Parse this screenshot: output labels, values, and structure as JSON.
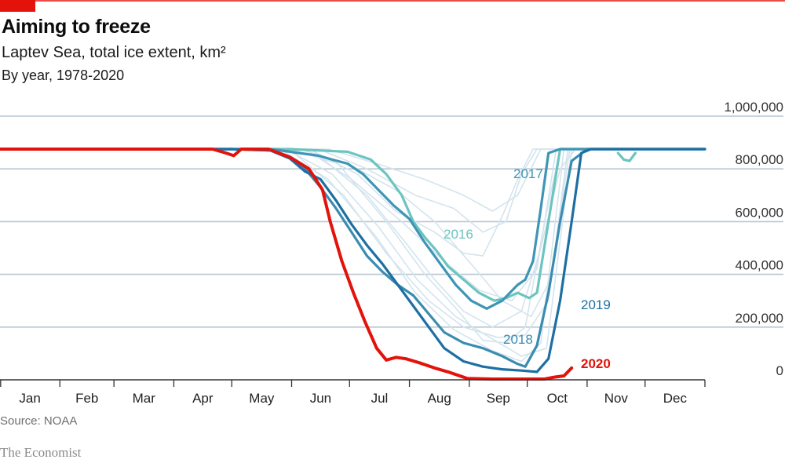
{
  "header": {
    "title": "Aiming to freeze",
    "subtitle": "Laptev Sea, total ice extent, km²",
    "subtitle2": "By year, 1978-2020"
  },
  "footer": {
    "source": "Source: NOAA",
    "brand": "The Economist"
  },
  "colors": {
    "brand_red": "#e3120b",
    "y2020": "#e3120b",
    "y2019": "#1d6fa3",
    "y2018": "#3a8cb0",
    "y2017": "#3e95b5",
    "y2016": "#6cc4c0",
    "background_years": "#d3e4ee",
    "grid": "#b7c6d1",
    "axis": "#333333"
  },
  "chart_data": {
    "type": "line",
    "title": "Aiming to freeze",
    "subtitle": "Laptev Sea, total ice extent, km²",
    "xlabel": "",
    "ylabel": "",
    "x_unit": "day of year",
    "xlim": [
      0,
      365
    ],
    "ylim": [
      0,
      1000000
    ],
    "grid": true,
    "y_axis_position": "right",
    "yticks": [
      {
        "value": 0,
        "label": "0"
      },
      {
        "value": 200000,
        "label": "200,000"
      },
      {
        "value": 400000,
        "label": "400,000"
      },
      {
        "value": 600000,
        "label": "600,000"
      },
      {
        "value": 800000,
        "label": "800,000"
      },
      {
        "value": 1000000,
        "label": "1,000,000"
      }
    ],
    "xtick_boundaries": [
      0,
      31,
      59,
      90,
      120,
      151,
      181,
      212,
      243,
      273,
      304,
      334,
      365
    ],
    "xticks": [
      "Jan",
      "Feb",
      "Mar",
      "Apr",
      "May",
      "Jun",
      "Jul",
      "Aug",
      "Sep",
      "Oct",
      "Nov",
      "Dec"
    ],
    "series": [
      {
        "name": "Background years 1978-2015 (a)",
        "highlight": false,
        "x": [
          0,
          140,
          165,
          190,
          210,
          225,
          240,
          255,
          270,
          280,
          290,
          298,
          365
        ],
        "y": [
          875000,
          875000,
          850000,
          700000,
          520000,
          380000,
          260000,
          200000,
          260000,
          500000,
          800000,
          875000,
          875000
        ]
      },
      {
        "name": "Background years 1978-2015 (b)",
        "highlight": false,
        "x": [
          0,
          150,
          175,
          200,
          220,
          235,
          250,
          262,
          272,
          282,
          290,
          365
        ],
        "y": [
          875000,
          875000,
          820000,
          600000,
          400000,
          280000,
          150000,
          140000,
          200000,
          600000,
          875000,
          875000
        ]
      },
      {
        "name": "Background years 1978-2015 (c)",
        "highlight": false,
        "x": [
          0,
          160,
          185,
          205,
          225,
          240,
          250,
          260,
          268,
          276,
          365
        ],
        "y": [
          875000,
          875000,
          780000,
          640000,
          560000,
          480000,
          470000,
          620000,
          760000,
          875000,
          875000
        ]
      },
      {
        "name": "Background years 1978-2015 (d)",
        "highlight": false,
        "x": [
          0,
          145,
          170,
          195,
          215,
          235,
          255,
          270,
          280,
          292,
          365
        ],
        "y": [
          875000,
          875000,
          760000,
          540000,
          330000,
          190000,
          110000,
          70000,
          140000,
          875000,
          875000
        ]
      },
      {
        "name": "Background years 1978-2015 (e)",
        "highlight": false,
        "x": [
          0,
          155,
          180,
          205,
          225,
          245,
          260,
          275,
          285,
          295,
          365
        ],
        "y": [
          875000,
          875000,
          820000,
          720000,
          600000,
          430000,
          300000,
          240000,
          380000,
          875000,
          875000
        ]
      },
      {
        "name": "Background years 1978-2015 (f)",
        "highlight": false,
        "x": [
          0,
          165,
          190,
          215,
          235,
          250,
          262,
          270,
          278,
          365
        ],
        "y": [
          875000,
          875000,
          800000,
          700000,
          650000,
          560000,
          600000,
          780000,
          875000,
          875000
        ]
      },
      {
        "name": "Background years 1978-2015 (g)",
        "highlight": false,
        "x": [
          0,
          150,
          178,
          200,
          222,
          240,
          258,
          272,
          284,
          294,
          365
        ],
        "y": [
          875000,
          875000,
          700000,
          480000,
          300000,
          200000,
          160000,
          170000,
          300000,
          875000,
          875000
        ]
      },
      {
        "name": "Background years 1978-2015 (h)",
        "highlight": false,
        "x": [
          0,
          158,
          182,
          208,
          230,
          248,
          265,
          278,
          288,
          365
        ],
        "y": [
          875000,
          875000,
          760000,
          600000,
          450000,
          340000,
          300000,
          420000,
          875000,
          875000
        ]
      },
      {
        "name": "Background years 1978-2015 (i)",
        "highlight": false,
        "x": [
          0,
          170,
          195,
          220,
          240,
          255,
          268,
          280,
          365
        ],
        "y": [
          875000,
          875000,
          820000,
          760000,
          700000,
          640000,
          700000,
          875000,
          875000
        ]
      },
      {
        "name": "Background years 1978-2015 (j)",
        "highlight": false,
        "x": [
          0,
          148,
          172,
          196,
          216,
          236,
          256,
          270,
          283,
          296,
          365
        ],
        "y": [
          875000,
          875000,
          780000,
          580000,
          380000,
          240000,
          150000,
          90000,
          120000,
          875000,
          875000
        ]
      },
      {
        "name": "2020",
        "highlight": true,
        "label": "2020",
        "x": [
          0,
          110,
          117,
          121,
          125,
          139,
          150,
          160,
          167,
          171,
          177,
          183,
          189,
          195,
          200,
          205,
          210,
          217,
          225,
          232,
          242,
          255,
          270,
          282,
          287,
          292,
          296
        ],
        "y": [
          875000,
          875000,
          860000,
          850000,
          875000,
          875000,
          845000,
          800000,
          720000,
          600000,
          450000,
          330000,
          220000,
          120000,
          75000,
          85000,
          80000,
          65000,
          45000,
          30000,
          5000,
          3000,
          3000,
          3000,
          10000,
          15000,
          45000
        ]
      },
      {
        "name": "2019",
        "highlight": true,
        "label": "2019",
        "x": [
          0,
          120,
          140,
          150,
          158,
          166,
          174,
          182,
          190,
          198,
          206,
          214,
          222,
          230,
          240,
          250,
          260,
          270,
          278,
          284,
          290,
          296,
          301,
          306,
          365
        ],
        "y": [
          875000,
          875000,
          870000,
          840000,
          790000,
          760000,
          680000,
          590000,
          510000,
          440000,
          360000,
          280000,
          200000,
          120000,
          70000,
          50000,
          40000,
          35000,
          30000,
          80000,
          300000,
          600000,
          860000,
          875000,
          875000
        ]
      },
      {
        "name": "2018",
        "highlight": true,
        "label": "2018",
        "x": [
          0,
          120,
          140,
          150,
          158,
          166,
          174,
          182,
          190,
          198,
          206,
          214,
          222,
          230,
          240,
          250,
          260,
          268,
          272,
          278,
          284,
          290,
          296,
          304,
          365
        ],
        "y": [
          875000,
          875000,
          870000,
          840000,
          800000,
          730000,
          650000,
          560000,
          470000,
          410000,
          360000,
          320000,
          250000,
          180000,
          140000,
          120000,
          90000,
          60000,
          50000,
          130000,
          330000,
          600000,
          830000,
          875000,
          875000
        ]
      },
      {
        "name": "2017",
        "highlight": true,
        "label": "2017",
        "x": [
          0,
          140,
          155,
          165,
          172,
          180,
          188,
          196,
          204,
          212,
          220,
          228,
          236,
          244,
          252,
          260,
          268,
          272,
          276,
          280,
          284,
          290,
          365
        ],
        "y": [
          875000,
          875000,
          860000,
          850000,
          835000,
          820000,
          780000,
          720000,
          660000,
          610000,
          520000,
          440000,
          360000,
          300000,
          270000,
          300000,
          360000,
          380000,
          450000,
          650000,
          860000,
          875000,
          875000
        ]
      },
      {
        "name": "2016",
        "highlight": true,
        "label": "2016",
        "x": [
          0,
          150,
          165,
          180,
          192,
          200,
          208,
          214,
          220,
          226,
          232,
          240,
          248,
          256,
          262,
          268,
          274,
          278,
          284,
          290,
          296,
          365
        ],
        "y": [
          875000,
          875000,
          870000,
          865000,
          835000,
          780000,
          700000,
          600000,
          540000,
          490000,
          430000,
          380000,
          330000,
          300000,
          310000,
          330000,
          310000,
          330000,
          600000,
          875000,
          875000,
          875000
        ]
      },
      {
        "name": "2019 refreeze blip",
        "highlight": true,
        "label": "",
        "x": [
          320,
          323,
          326,
          329
        ],
        "y": [
          860000,
          835000,
          830000,
          860000
        ]
      }
    ]
  }
}
